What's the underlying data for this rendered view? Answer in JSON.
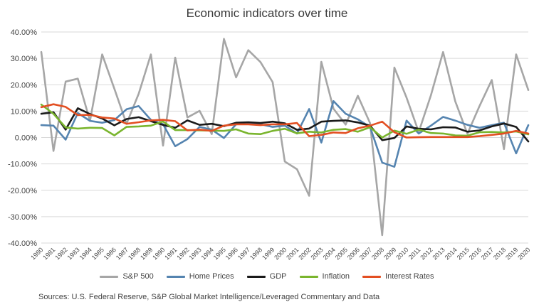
{
  "chart_data": {
    "type": "line",
    "title": "Economic indicators over time",
    "x": [
      "1980",
      "1981",
      "1982",
      "1983",
      "1984",
      "1985",
      "1986",
      "1987",
      "1988",
      "1989",
      "1990",
      "1991",
      "1992",
      "1993",
      "1994",
      "1995",
      "1996",
      "1997",
      "1998",
      "1999",
      "2000",
      "2001",
      "2002",
      "2003",
      "2004",
      "2005",
      "2006",
      "2007",
      "2008",
      "2009",
      "2010",
      "2011",
      "2012",
      "2013",
      "2014",
      "2015",
      "2016",
      "2017",
      "2018",
      "2019",
      "2020"
    ],
    "yticks": [
      "40.00%",
      "30.00%",
      "20.00%",
      "10.00%",
      "0.00%",
      "-10.00%",
      "-20.00%",
      "-30.00%",
      "-40.00%"
    ],
    "ylim": [
      -40,
      40
    ],
    "grid": true,
    "legend_position": "bottom",
    "series": [
      {
        "name": "S&P 500",
        "color": "#a6a6a6",
        "values": [
          32.4,
          -5.1,
          21.2,
          22.3,
          6.3,
          31.5,
          18.5,
          5.2,
          16.6,
          31.5,
          -3.1,
          30.3,
          7.6,
          10.1,
          1.3,
          37.4,
          22.8,
          33.1,
          28.6,
          21.0,
          -9.1,
          -12.0,
          -22.1,
          28.7,
          10.9,
          4.9,
          15.8,
          5.5,
          -37.0,
          26.5,
          15.1,
          2.1,
          16.0,
          32.4,
          13.7,
          1.4,
          12.0,
          21.8,
          -4.4,
          31.5,
          18.0
        ]
      },
      {
        "name": "Home Prices",
        "color": "#5584b0",
        "values": [
          4.7,
          4.5,
          -0.8,
          9.3,
          6.3,
          5.6,
          6.6,
          10.7,
          11.9,
          6.7,
          5.0,
          -3.3,
          -0.6,
          4.0,
          3.0,
          -0.2,
          5.0,
          5.5,
          5.0,
          4.0,
          4.5,
          1.5,
          10.8,
          -1.9,
          13.8,
          9.0,
          6.9,
          4.0,
          -9.5,
          -11.1,
          6.4,
          1.5,
          4.5,
          7.8,
          6.4,
          4.8,
          3.7,
          4.7,
          5.6,
          -6.0,
          4.7
        ]
      },
      {
        "name": "GDP",
        "color": "#1a1a1a",
        "values": [
          9.0,
          9.6,
          3.0,
          11.1,
          8.9,
          7.2,
          4.6,
          7.0,
          7.7,
          6.2,
          4.8,
          3.7,
          6.5,
          4.8,
          5.2,
          4.3,
          5.6,
          5.8,
          5.5,
          6.0,
          5.4,
          2.9,
          3.4,
          6.0,
          6.3,
          6.5,
          5.7,
          4.5,
          -1.0,
          -0.2,
          4.2,
          3.3,
          3.1,
          3.9,
          3.8,
          2.2,
          2.7,
          4.2,
          5.3,
          4.0,
          -1.5
        ]
      },
      {
        "name": "Inflation",
        "color": "#7ab52e",
        "values": [
          12.5,
          9.0,
          3.8,
          3.4,
          3.7,
          3.6,
          0.8,
          4.0,
          4.2,
          4.5,
          6.1,
          2.8,
          2.8,
          2.7,
          2.6,
          2.5,
          3.1,
          1.5,
          1.3,
          2.5,
          3.3,
          1.6,
          2.2,
          1.9,
          2.9,
          3.2,
          2.2,
          3.9,
          0.0,
          2.6,
          1.4,
          3.0,
          1.7,
          1.5,
          0.8,
          0.7,
          2.0,
          2.1,
          1.9,
          2.3,
          1.2
        ]
      },
      {
        "name": "Interest Rates",
        "color": "#e34f22",
        "values": [
          11.5,
          12.6,
          11.6,
          8.5,
          8.6,
          7.6,
          7.2,
          5.2,
          5.8,
          6.5,
          6.7,
          6.2,
          2.7,
          3.0,
          2.5,
          4.5,
          5.0,
          5.0,
          4.7,
          5.0,
          5.0,
          5.5,
          0.5,
          1.0,
          1.9,
          1.7,
          3.5,
          4.5,
          6.0,
          2.0,
          0.0,
          0.1,
          0.2,
          0.2,
          0.2,
          0.2,
          0.5,
          1.0,
          1.5,
          2.5,
          1.5
        ]
      }
    ]
  },
  "source_note": "Sources: U.S. Federal Reserve, S&P Global Market Intelligence/Leveraged Commentary and Data"
}
